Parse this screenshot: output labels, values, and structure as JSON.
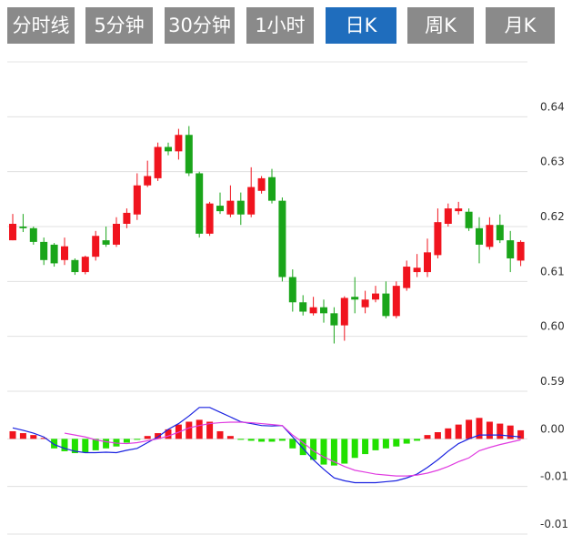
{
  "tabs": {
    "items": [
      "分时线",
      "5分钟",
      "30分钟",
      "1小时",
      "日K",
      "周K",
      "月K"
    ],
    "selected": 4
  },
  "chart_data": [
    {
      "type": "candlestick",
      "up_color": "#f0141e",
      "down_color": "#1aa51a",
      "grid": true,
      "ylim": [
        0.59,
        0.65
      ],
      "yticks": [
        0.64,
        0.63,
        0.62,
        0.61,
        {
          "value": 0.6,
          "label": "0.60"
        },
        0.59
      ],
      "open": [
        0.6175,
        0.62,
        0.6197,
        0.6172,
        0.6167,
        0.6139,
        0.6139,
        0.6117,
        0.6145,
        0.6175,
        0.6167,
        0.6205,
        0.6222,
        0.6275,
        0.6288,
        0.6345,
        0.6337,
        0.6367,
        0.6297,
        0.6187,
        0.6238,
        0.6222,
        0.6247,
        0.6222,
        0.6265,
        0.629,
        0.6247,
        0.6108,
        0.6062,
        0.6042,
        0.6053,
        0.6042,
        0.602,
        0.6072,
        0.6053,
        0.6067,
        0.6078,
        0.6037,
        0.6088,
        0.6117,
        0.6117,
        0.6148,
        0.6205,
        0.6228,
        0.6227,
        0.6197,
        0.6163,
        0.6203,
        0.6175,
        0.6138
      ],
      "high": [
        0.6223,
        0.6223,
        0.62,
        0.618,
        0.617,
        0.618,
        0.6142,
        0.6147,
        0.6192,
        0.62,
        0.6217,
        0.6233,
        0.6297,
        0.632,
        0.6353,
        0.6353,
        0.6378,
        0.6383,
        0.63,
        0.6245,
        0.6262,
        0.6275,
        0.6262,
        0.6308,
        0.6292,
        0.6305,
        0.6253,
        0.6122,
        0.6075,
        0.6072,
        0.6067,
        0.6053,
        0.6073,
        0.6108,
        0.6083,
        0.6092,
        0.61,
        0.61,
        0.6138,
        0.615,
        0.6178,
        0.6233,
        0.6242,
        0.6245,
        0.6233,
        0.6217,
        0.6217,
        0.6222,
        0.6192,
        0.6175
      ],
      "low": [
        0.6175,
        0.619,
        0.6167,
        0.613,
        0.6127,
        0.613,
        0.6112,
        0.6113,
        0.6138,
        0.6163,
        0.6163,
        0.6197,
        0.6212,
        0.6272,
        0.6283,
        0.633,
        0.6322,
        0.6292,
        0.618,
        0.6183,
        0.6223,
        0.6217,
        0.6203,
        0.6217,
        0.626,
        0.6242,
        0.61,
        0.6045,
        0.6038,
        0.6038,
        0.6025,
        0.5987,
        0.5992,
        0.6042,
        0.6042,
        0.6062,
        0.6033,
        0.6033,
        0.6083,
        0.6108,
        0.6108,
        0.6142,
        0.62,
        0.6222,
        0.6192,
        0.6133,
        0.6158,
        0.617,
        0.6117,
        0.6128
      ],
      "close": [
        0.6205,
        0.6197,
        0.6172,
        0.6139,
        0.6133,
        0.6164,
        0.6117,
        0.6145,
        0.6183,
        0.6167,
        0.6205,
        0.6225,
        0.6275,
        0.6292,
        0.6345,
        0.6337,
        0.6367,
        0.6297,
        0.6187,
        0.6242,
        0.6228,
        0.6247,
        0.6222,
        0.6272,
        0.6288,
        0.6247,
        0.6108,
        0.6062,
        0.6045,
        0.6053,
        0.6042,
        0.602,
        0.607,
        0.6067,
        0.6067,
        0.6078,
        0.6037,
        0.6092,
        0.6127,
        0.6125,
        0.6153,
        0.6208,
        0.6233,
        0.6233,
        0.6197,
        0.6167,
        0.6203,
        0.6175,
        0.6142,
        0.6172
      ]
    },
    {
      "type": "macd",
      "up_color": "#f0141e",
      "down_color": "#22e000",
      "dif_color": "#1a22e0",
      "dea_color": "#e03ce0",
      "grid": true,
      "ylim": [
        -0.01,
        0.005
      ],
      "yticks": [
        {
          "value": 0,
          "label": "0.00"
        },
        {
          "value": -0.005,
          "label": "-0.01"
        },
        {
          "value": -0.01,
          "label": "-0.01"
        }
      ],
      "histogram": [
        0.0008,
        0.0006,
        0.0004,
        0.0001,
        -0.001,
        -0.0013,
        -0.0015,
        -0.0014,
        -0.0012,
        -0.001,
        -0.0008,
        -0.0004,
        -0.0001,
        0.0003,
        0.0006,
        0.001,
        0.0015,
        0.0018,
        0.002,
        0.0018,
        0.0008,
        0.0003,
        -0.0001,
        -0.0002,
        -0.0003,
        -0.0003,
        -0.0002,
        -0.001,
        -0.0017,
        -0.0022,
        -0.0027,
        -0.0028,
        -0.0026,
        -0.002,
        -0.0016,
        -0.0012,
        -0.001,
        -0.0008,
        -0.0005,
        -0.0002,
        0.0004,
        0.0007,
        0.0011,
        0.0015,
        0.002,
        0.0022,
        0.0018,
        0.0016,
        0.0014,
        0.0009
      ],
      "dif": [
        0.00115,
        0.0009,
        0.0006,
        0.0002,
        -0.0006,
        -0.001,
        -0.0013,
        -0.00145,
        -0.00145,
        -0.0014,
        -0.00145,
        -0.0012,
        -0.001,
        -0.0004,
        0.0002,
        0.001,
        0.0016,
        0.0024,
        0.0033,
        0.0033,
        0.0028,
        0.0023,
        0.0018,
        0.0016,
        0.0014,
        0.00135,
        0.0014,
        0.0002,
        -0.001,
        -0.0022,
        -0.0032,
        -0.0041,
        -0.0044,
        -0.0046,
        -0.0046,
        -0.0046,
        -0.0045,
        -0.0044,
        -0.0041,
        -0.0037,
        -0.003,
        -0.0022,
        -0.0013,
        -0.0005,
        0.0,
        0.0004,
        0.0004,
        0.0004,
        0.0003,
        0.0002
      ],
      "dea": [
        null,
        null,
        null,
        null,
        null,
        0.0006,
        0.0004,
        0.0002,
        -0.0001,
        -0.0003,
        -0.00045,
        -0.0005,
        -0.0004,
        -0.0002,
        0.0,
        0.0003,
        0.0007,
        0.00115,
        0.0014,
        0.0016,
        0.0017,
        0.00175,
        0.00175,
        0.0017,
        0.0016,
        0.0015,
        0.0014,
        0.0004,
        -0.0004,
        -0.00125,
        -0.0019,
        -0.0024,
        -0.0029,
        -0.0033,
        -0.0035,
        -0.0037,
        -0.0038,
        -0.0039,
        -0.0039,
        -0.0038,
        -0.0036,
        -0.0033,
        -0.0029,
        -0.0024,
        -0.002,
        -0.00125,
        -0.0009,
        -0.0006,
        -0.00035,
        -0.0001
      ]
    }
  ]
}
